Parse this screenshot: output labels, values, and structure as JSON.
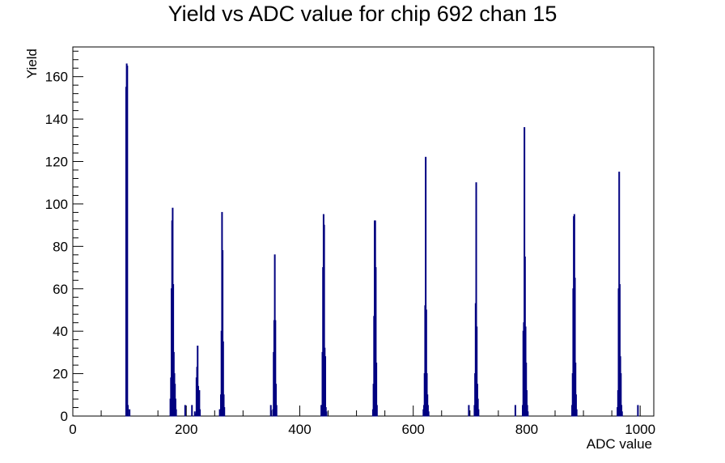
{
  "chart_data": {
    "type": "bar",
    "title": "Yield vs ADC value for chip 692 chan 15",
    "xlabel": "ADC value",
    "ylabel": "Yield",
    "xlim": [
      0,
      1024
    ],
    "ylim": [
      0,
      174
    ],
    "x_ticks": [
      0,
      200,
      400,
      600,
      800,
      1000
    ],
    "y_ticks": [
      0,
      20,
      40,
      60,
      80,
      100,
      120,
      140,
      160
    ],
    "grid": false,
    "legend": "none",
    "line_color": "#000080",
    "bin_width": 1,
    "series": [
      {
        "x": [
          94,
          95,
          96,
          97,
          100,
          172,
          173,
          174,
          175,
          176,
          177,
          178,
          179,
          180,
          181,
          182,
          198,
          210,
          215,
          216,
          218,
          219,
          220,
          221,
          222,
          223,
          224,
          259,
          261,
          262,
          263,
          264,
          265,
          266,
          267,
          349,
          353,
          354,
          355,
          356,
          357,
          358,
          359,
          438,
          439,
          440,
          441,
          442,
          443,
          444,
          445,
          446,
          447,
          529,
          530,
          531,
          532,
          533,
          534,
          535,
          536,
          618,
          619,
          620,
          621,
          622,
          623,
          624,
          625,
          626,
          627,
          698,
          708,
          709,
          710,
          711,
          712,
          713,
          714,
          715,
          780,
          793,
          794,
          795,
          796,
          797,
          798,
          799,
          800,
          801,
          802,
          880,
          881,
          882,
          883,
          884,
          885,
          886,
          887,
          888,
          960,
          961,
          962,
          963,
          964,
          965,
          966,
          967,
          968,
          996
        ],
        "y": [
          155,
          166,
          165,
          5,
          3,
          8,
          18,
          60,
          92,
          98,
          62,
          30,
          20,
          15,
          8,
          3,
          5,
          5,
          2,
          1,
          18,
          23,
          33,
          14,
          12,
          12,
          3,
          3,
          10,
          40,
          96,
          78,
          35,
          10,
          4,
          5,
          3,
          30,
          45,
          76,
          45,
          15,
          5,
          5,
          5,
          30,
          70,
          95,
          90,
          32,
          28,
          4,
          2,
          3,
          15,
          47,
          92,
          92,
          70,
          25,
          5,
          3,
          5,
          20,
          52,
          122,
          50,
          20,
          10,
          5,
          2,
          5,
          5,
          20,
          53,
          110,
          42,
          15,
          8,
          3,
          5,
          5,
          40,
          44,
          136,
          75,
          42,
          25,
          12,
          5,
          2,
          5,
          20,
          60,
          94,
          95,
          65,
          25,
          10,
          3,
          4,
          12,
          60,
          115,
          62,
          28,
          20,
          5,
          2,
          5
        ]
      }
    ]
  }
}
